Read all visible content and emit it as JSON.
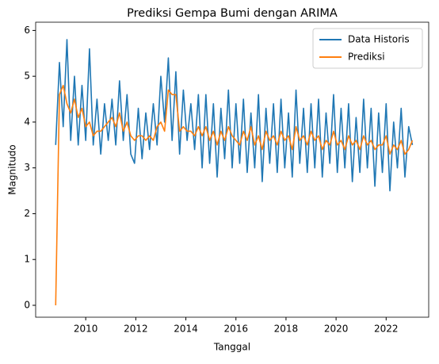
{
  "chart_data": {
    "type": "line",
    "title": "Prediksi Gempa Bumi dengan ARIMA",
    "x_label": "Tanggal",
    "y_label": "Magnitudo",
    "x": [
      2008.8,
      2008.95,
      2009.1,
      2009.25,
      2009.4,
      2009.55,
      2009.7,
      2009.85,
      2010,
      2010.15,
      2010.3,
      2010.45,
      2010.6,
      2010.75,
      2010.9,
      2011.05,
      2011.2,
      2011.35,
      2011.5,
      2011.65,
      2011.8,
      2011.95,
      2012.1,
      2012.25,
      2012.4,
      2012.55,
      2012.7,
      2012.85,
      2013,
      2013.15,
      2013.3,
      2013.45,
      2013.6,
      2013.75,
      2013.9,
      2014.05,
      2014.2,
      2014.35,
      2014.5,
      2014.65,
      2014.8,
      2014.95,
      2015.1,
      2015.25,
      2015.4,
      2015.55,
      2015.7,
      2015.85,
      2016,
      2016.15,
      2016.3,
      2016.45,
      2016.6,
      2016.75,
      2016.9,
      2017.05,
      2017.2,
      2017.35,
      2017.5,
      2017.65,
      2017.8,
      2017.95,
      2018.1,
      2018.25,
      2018.4,
      2018.55,
      2018.7,
      2018.85,
      2019,
      2019.15,
      2019.3,
      2019.45,
      2019.6,
      2019.75,
      2019.9,
      2020.05,
      2020.2,
      2020.35,
      2020.5,
      2020.65,
      2020.8,
      2020.95,
      2021.1,
      2021.25,
      2021.4,
      2021.55,
      2021.7,
      2021.85,
      2022,
      2022.15,
      2022.3,
      2022.45,
      2022.6,
      2022.75,
      2022.9,
      2023.05
    ],
    "series": [
      {
        "name": "Data Historis",
        "color": "#1f77b4",
        "values": [
          3.5,
          5.3,
          3.9,
          5.8,
          3.6,
          5.0,
          3.5,
          4.8,
          3.6,
          5.6,
          3.5,
          4.5,
          3.3,
          4.4,
          3.6,
          4.5,
          3.5,
          4.9,
          3.6,
          4.6,
          3.3,
          3.1,
          4.3,
          3.2,
          4.2,
          3.4,
          4.4,
          3.5,
          5.0,
          4.0,
          5.4,
          3.6,
          5.1,
          3.3,
          4.7,
          3.6,
          4.4,
          3.4,
          4.6,
          3.0,
          4.6,
          3.1,
          4.4,
          2.8,
          4.3,
          3.2,
          4.7,
          3.0,
          4.4,
          3.1,
          4.5,
          2.9,
          4.2,
          3.0,
          4.6,
          2.7,
          4.3,
          3.1,
          4.4,
          2.9,
          4.5,
          3.0,
          4.2,
          2.8,
          4.7,
          3.1,
          4.3,
          2.9,
          4.4,
          3.0,
          4.5,
          2.8,
          4.2,
          3.1,
          4.6,
          2.9,
          4.3,
          3.0,
          4.4,
          2.7,
          4.1,
          2.9,
          4.5,
          3.0,
          4.3,
          2.6,
          4.2,
          2.9,
          4.4,
          2.5,
          4.0,
          3.0,
          4.3,
          2.8,
          3.9,
          3.5
        ]
      },
      {
        "name": "Prediksi",
        "color": "#ff7f0e",
        "values": [
          0,
          4.6,
          4.8,
          4.4,
          4.2,
          4.5,
          4.1,
          4.3,
          3.9,
          4.0,
          3.7,
          3.8,
          3.8,
          3.9,
          4.0,
          4.1,
          3.9,
          4.2,
          3.8,
          4.0,
          3.7,
          3.6,
          3.7,
          3.7,
          3.6,
          3.7,
          3.6,
          3.9,
          4.0,
          3.8,
          4.7,
          4.6,
          4.6,
          3.8,
          3.9,
          3.8,
          3.8,
          3.7,
          3.9,
          3.7,
          3.9,
          3.6,
          3.8,
          3.5,
          3.8,
          3.6,
          3.9,
          3.7,
          3.6,
          3.5,
          3.8,
          3.6,
          3.9,
          3.5,
          3.7,
          3.4,
          3.8,
          3.6,
          3.7,
          3.5,
          3.8,
          3.6,
          3.7,
          3.4,
          3.9,
          3.6,
          3.7,
          3.5,
          3.8,
          3.6,
          3.7,
          3.4,
          3.6,
          3.5,
          3.8,
          3.5,
          3.6,
          3.4,
          3.7,
          3.5,
          3.6,
          3.4,
          3.7,
          3.5,
          3.6,
          3.4,
          3.5,
          3.5,
          3.7,
          3.3,
          3.5,
          3.4,
          3.6,
          3.3,
          3.4,
          3.6
        ]
      }
    ],
    "xlim": [
      2008.0,
      2023.7
    ],
    "xticks": [
      2010,
      2012,
      2014,
      2016,
      2018,
      2020,
      2022
    ],
    "ylim": [
      -0.26,
      6.18
    ],
    "yticks": [
      0,
      1,
      2,
      3,
      4,
      5,
      6
    ],
    "legend": "upper right"
  }
}
